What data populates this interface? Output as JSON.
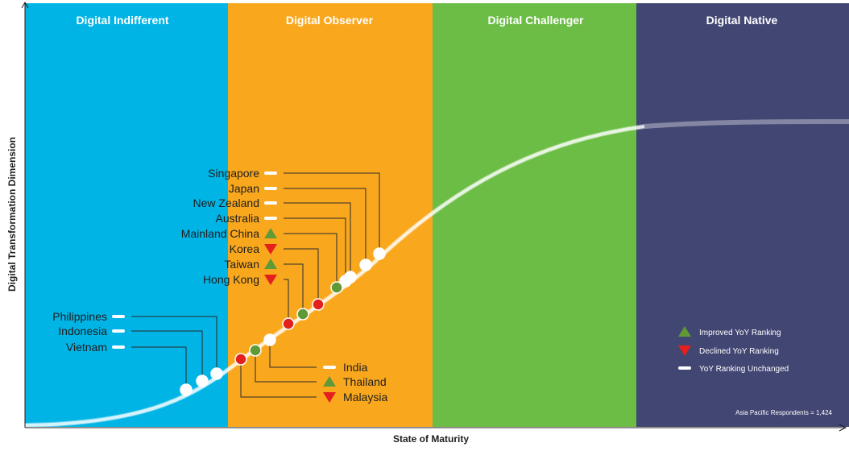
{
  "colors": {
    "indifferent": "#00b4e6",
    "observer": "#f9a81e",
    "challenger": "#6cbd45",
    "native": "#424673",
    "improved": "#5f9a37",
    "declined": "#e3201b",
    "unchanged": "#ffffff"
  },
  "stages": [
    {
      "key": "indifferent",
      "label": "Digital Indifferent"
    },
    {
      "key": "observer",
      "label": "Digital Observer"
    },
    {
      "key": "challenger",
      "label": "Digital Challenger"
    },
    {
      "key": "native",
      "label": "Digital Native"
    }
  ],
  "axes": {
    "x_title": "State of Maturity",
    "y_title": "Digital Transformation Dimension"
  },
  "countries": [
    {
      "name": "Singapore",
      "status": "unchanged"
    },
    {
      "name": "Japan",
      "status": "unchanged"
    },
    {
      "name": "New Zealand",
      "status": "unchanged"
    },
    {
      "name": "Australia",
      "status": "unchanged"
    },
    {
      "name": "Mainland China",
      "status": "improved"
    },
    {
      "name": "Korea",
      "status": "declined"
    },
    {
      "name": "Taiwan",
      "status": "improved"
    },
    {
      "name": "Hong Kong",
      "status": "declined"
    },
    {
      "name": "Philippines",
      "status": "unchanged"
    },
    {
      "name": "Indonesia",
      "status": "unchanged"
    },
    {
      "name": "Vietnam",
      "status": "unchanged"
    },
    {
      "name": "India",
      "status": "unchanged"
    },
    {
      "name": "Thailand",
      "status": "improved"
    },
    {
      "name": "Malaysia",
      "status": "declined"
    }
  ],
  "legend": [
    {
      "status": "improved",
      "label": "Improved YoY Ranking"
    },
    {
      "status": "declined",
      "label": "Declined YoY Ranking"
    },
    {
      "status": "unchanged",
      "label": "YoY Ranking Unchanged"
    }
  ],
  "note": "Asia Pacific Respondents = 1,424"
}
